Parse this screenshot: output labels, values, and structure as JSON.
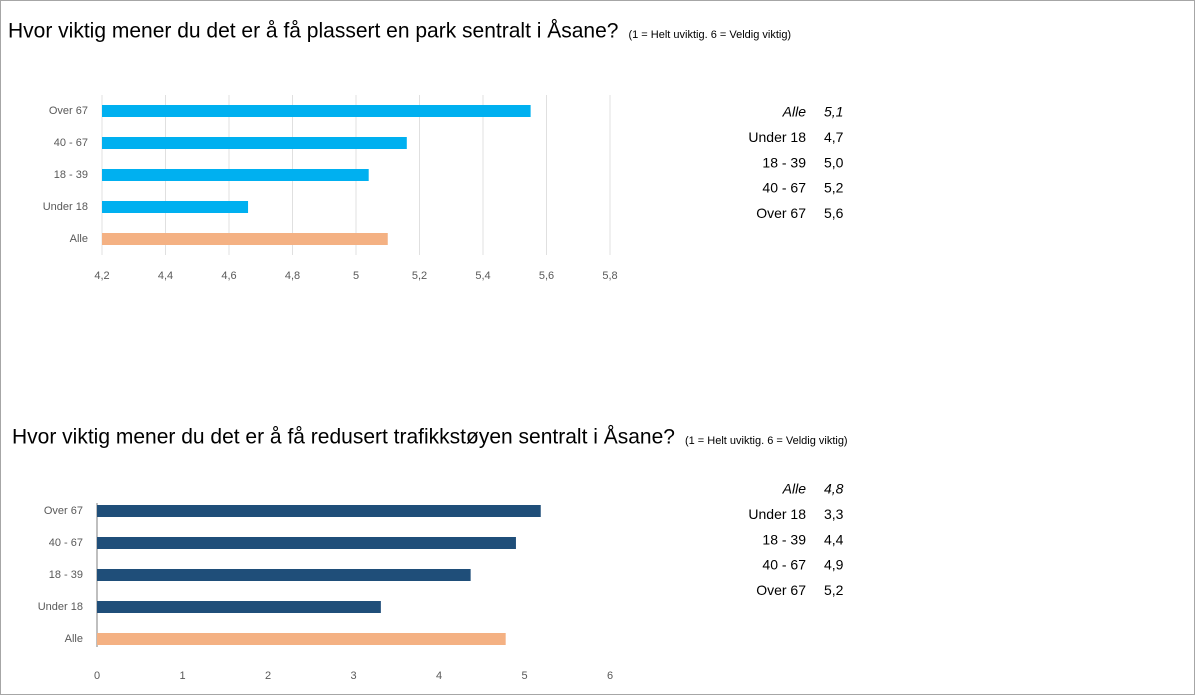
{
  "chart_data": [
    {
      "type": "bar",
      "orientation": "horizontal",
      "title": "Hvor viktig mener du det er å få plassert en park sentralt i Åsane?",
      "subtitle": "(1 = Helt uviktig.  6 = Veldig viktig)",
      "categories": [
        "Over 67",
        "40 - 67",
        "18 - 39",
        "Under 18",
        "Alle"
      ],
      "values": [
        5.55,
        5.16,
        5.04,
        4.66,
        5.1
      ],
      "colors": [
        "#00b0f0",
        "#00b0f0",
        "#00b0f0",
        "#00b0f0",
        "#f4b183"
      ],
      "xlim": [
        4.2,
        5.8
      ],
      "xticks": [
        {
          "value": 4.2,
          "label": "4,2"
        },
        {
          "value": 4.4,
          "label": "4,4"
        },
        {
          "value": 4.6,
          "label": "4,6"
        },
        {
          "value": 4.8,
          "label": "4,8"
        },
        5,
        {
          "value": 5.2,
          "label": "5,2"
        },
        {
          "value": 5.4,
          "label": "5,4"
        },
        {
          "value": 5.6,
          "label": "5,6"
        },
        {
          "value": 5.8,
          "label": "5,8"
        }
      ],
      "grid": true,
      "table": [
        [
          "Alle",
          "5,1"
        ],
        [
          "Under 18",
          "4,7"
        ],
        [
          "18 - 39",
          "5,0"
        ],
        [
          "40 - 67",
          "5,2"
        ],
        [
          "Over 67",
          "5,6"
        ]
      ]
    },
    {
      "type": "bar",
      "orientation": "horizontal",
      "title": "Hvor viktig mener du det er å få redusert trafikkstøyen sentralt i Åsane?",
      "subtitle": "(1 = Helt uviktig.  6 = Veldig viktig)",
      "categories": [
        "Over 67",
        "40 - 67",
        "18 - 39",
        "Under 18",
        "Alle"
      ],
      "values": [
        5.19,
        4.9,
        4.37,
        3.32,
        4.78
      ],
      "colors": [
        "#1f4e79",
        "#1f4e79",
        "#1f4e79",
        "#1f4e79",
        "#f4b183"
      ],
      "xlim": [
        0,
        6
      ],
      "xticks": [
        0,
        1,
        2,
        3,
        4,
        5,
        6
      ],
      "grid": false,
      "table": [
        [
          "Alle",
          "4,8"
        ],
        [
          "Under 18",
          "3,3"
        ],
        [
          "18 - 39",
          "4,4"
        ],
        [
          "40 - 67",
          "4,9"
        ],
        [
          "Over 67",
          "5,2"
        ]
      ]
    }
  ]
}
